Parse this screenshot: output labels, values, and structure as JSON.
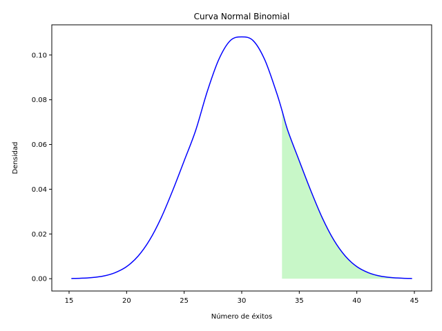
{
  "chart_data": {
    "type": "line",
    "title": "Curva Normal Binomial",
    "xlabel": "Número de éxitos",
    "ylabel": "Densidad",
    "xlim": [
      13.5,
      46.5
    ],
    "ylim": [
      -0.0055,
      0.1135
    ],
    "x_ticks": [
      15,
      20,
      25,
      30,
      35,
      40,
      45
    ],
    "y_ticks": [
      0.0,
      0.02,
      0.04,
      0.06,
      0.08,
      0.1
    ],
    "x_tick_labels": [
      "15",
      "20",
      "25",
      "30",
      "35",
      "40",
      "45"
    ],
    "y_tick_labels": [
      "0.00",
      "0.02",
      "0.04",
      "0.06",
      "0.08",
      "0.10"
    ],
    "grid": false,
    "series": [
      {
        "color": "#0000ff",
        "x": [
          15.2,
          16,
          17,
          18,
          19,
          20,
          21,
          22,
          23,
          24,
          25,
          26,
          27,
          28,
          29,
          30,
          31,
          32,
          33,
          33.5,
          34,
          35,
          36,
          37,
          38,
          39,
          40,
          41,
          42,
          43,
          44,
          44.8
        ],
        "y": [
          0.0001,
          0.0002,
          0.0005,
          0.0012,
          0.0027,
          0.0054,
          0.0101,
          0.0173,
          0.0272,
          0.0394,
          0.0527,
          0.0663,
          0.0836,
          0.0979,
          0.1064,
          0.1081,
          0.1064,
          0.0979,
          0.0836,
          0.0752,
          0.0663,
          0.0527,
          0.0394,
          0.0272,
          0.0173,
          0.0101,
          0.0054,
          0.0027,
          0.0012,
          0.0005,
          0.0002,
          0.0001
        ]
      }
    ],
    "shaded_region": {
      "color": "#c8f7c8",
      "x_start": 33.5,
      "x_end": 44.8
    }
  }
}
